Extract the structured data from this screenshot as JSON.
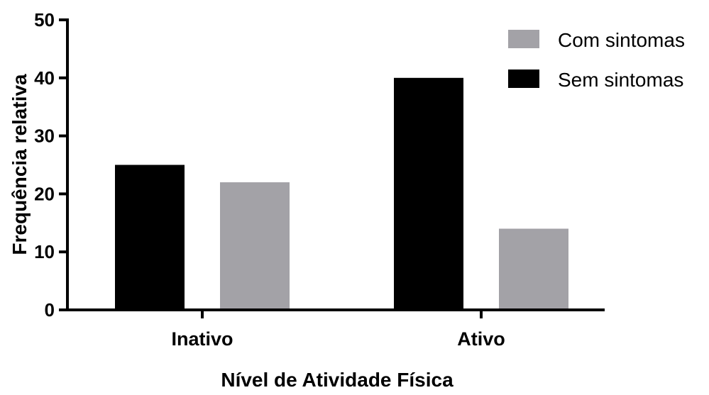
{
  "chart_data": {
    "type": "bar",
    "categories": [
      "Inativo",
      "Ativo"
    ],
    "series": [
      {
        "name": "Sem sintomas",
        "values": [
          25,
          40
        ],
        "color": "#000000"
      },
      {
        "name": "Com sintomas",
        "values": [
          22,
          14
        ],
        "color": "#a3a2a7"
      }
    ],
    "legend_order": [
      "Com sintomas",
      "Sem sintomas"
    ],
    "legend_position": "top-right",
    "xlabel": "Nível de Atividade Física",
    "ylabel": "Frequência relativa",
    "ylim": [
      0,
      50
    ],
    "yticks": [
      0,
      10,
      20,
      30,
      40,
      50
    ],
    "grid": false
  }
}
